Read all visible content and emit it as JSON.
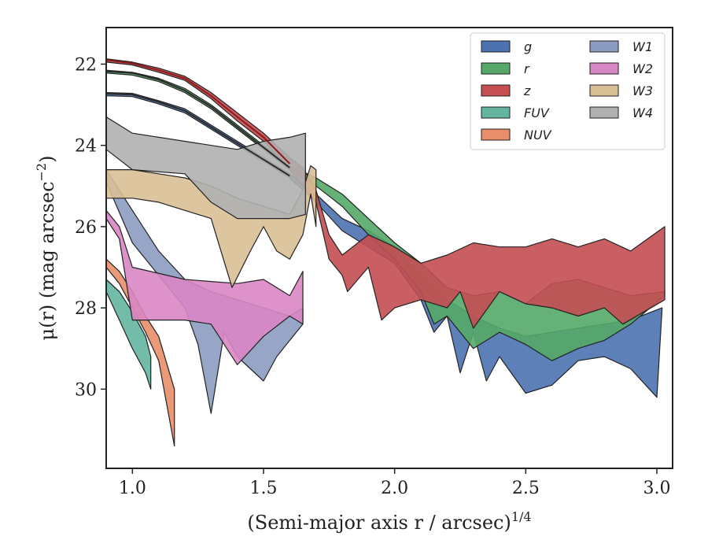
{
  "chart_data": {
    "type": "area",
    "xlabel": "(Semi-major axis r / arcsec)",
    "xlabel_sup": "1/4",
    "ylabel": "μ(r) (mag arcsec",
    "ylabel_sup": "−2",
    "ylabel_tail": ")",
    "xlim": [
      0.9,
      3.06
    ],
    "ylim": [
      31.95,
      21.1
    ],
    "y_inverted": true,
    "x_ticks": [
      1.0,
      1.5,
      2.0,
      2.5,
      3.0
    ],
    "x_tick_labels": [
      "1.0",
      "1.5",
      "2.0",
      "2.5",
      "3.0"
    ],
    "y_ticks": [
      22,
      24,
      26,
      28,
      30
    ],
    "y_tick_labels": [
      "22",
      "24",
      "26",
      "28",
      "30"
    ],
    "grid": false,
    "legend_placement": "top-right",
    "legend_columns": 2,
    "series": [
      {
        "name": "g",
        "color": "#4c72b0",
        "upper": [
          [
            0.9,
            22.7
          ],
          [
            1.0,
            22.72
          ],
          [
            1.1,
            22.9
          ],
          [
            1.2,
            23.1
          ],
          [
            1.3,
            23.5
          ],
          [
            1.4,
            23.9
          ],
          [
            1.5,
            24.3
          ],
          [
            1.6,
            24.7
          ],
          [
            1.7,
            25.2
          ],
          [
            1.8,
            25.8
          ],
          [
            1.9,
            26.1
          ],
          [
            2.0,
            26.5
          ],
          [
            2.1,
            27.2
          ],
          [
            2.2,
            27.8
          ],
          [
            2.3,
            28.2
          ],
          [
            2.4,
            28.5
          ],
          [
            2.5,
            28.7
          ],
          [
            2.7,
            28.5
          ],
          [
            2.9,
            28.3
          ],
          [
            3.02,
            28.0
          ]
        ],
        "lower": [
          [
            0.9,
            22.78
          ],
          [
            1.0,
            22.8
          ],
          [
            1.1,
            22.98
          ],
          [
            1.2,
            23.2
          ],
          [
            1.3,
            23.6
          ],
          [
            1.4,
            24.0
          ],
          [
            1.5,
            24.4
          ],
          [
            1.6,
            24.8
          ],
          [
            1.7,
            25.4
          ],
          [
            1.8,
            26.1
          ],
          [
            1.9,
            26.5
          ],
          [
            2.0,
            26.9
          ],
          [
            2.1,
            27.8
          ],
          [
            2.15,
            28.6
          ],
          [
            2.2,
            28.2
          ],
          [
            2.25,
            29.6
          ],
          [
            2.3,
            28.6
          ],
          [
            2.35,
            29.8
          ],
          [
            2.4,
            29.2
          ],
          [
            2.5,
            30.1
          ],
          [
            2.6,
            29.9
          ],
          [
            2.7,
            29.3
          ],
          [
            2.8,
            29.2
          ],
          [
            2.9,
            29.5
          ],
          [
            3.0,
            30.2
          ]
        ]
      },
      {
        "name": "r",
        "color": "#55a868",
        "upper": [
          [
            0.9,
            22.15
          ],
          [
            1.0,
            22.2
          ],
          [
            1.1,
            22.35
          ],
          [
            1.2,
            22.6
          ],
          [
            1.3,
            23.0
          ],
          [
            1.4,
            23.5
          ],
          [
            1.5,
            24.0
          ],
          [
            1.6,
            24.5
          ],
          [
            1.7,
            24.8
          ],
          [
            1.8,
            25.2
          ],
          [
            1.9,
            25.8
          ],
          [
            2.0,
            26.4
          ],
          [
            2.1,
            26.9
          ],
          [
            2.2,
            27.5
          ],
          [
            2.3,
            27.7
          ],
          [
            2.4,
            27.6
          ],
          [
            2.5,
            27.9
          ],
          [
            2.6,
            27.4
          ],
          [
            2.7,
            27.3
          ],
          [
            2.8,
            27.5
          ],
          [
            2.9,
            27.7
          ],
          [
            3.03,
            27.6
          ]
        ],
        "lower": [
          [
            0.9,
            22.22
          ],
          [
            1.0,
            22.27
          ],
          [
            1.1,
            22.43
          ],
          [
            1.2,
            22.7
          ],
          [
            1.3,
            23.1
          ],
          [
            1.4,
            23.6
          ],
          [
            1.5,
            24.1
          ],
          [
            1.6,
            24.6
          ],
          [
            1.7,
            25.0
          ],
          [
            1.8,
            25.5
          ],
          [
            1.9,
            26.2
          ],
          [
            2.0,
            26.8
          ],
          [
            2.1,
            27.6
          ],
          [
            2.15,
            28.4
          ],
          [
            2.2,
            28.2
          ],
          [
            2.3,
            29.0
          ],
          [
            2.4,
            28.6
          ],
          [
            2.5,
            28.9
          ],
          [
            2.6,
            29.3
          ],
          [
            2.7,
            29.0
          ],
          [
            2.8,
            28.8
          ],
          [
            2.9,
            28.4
          ],
          [
            3.03,
            27.7
          ]
        ]
      },
      {
        "name": "z",
        "color": "#c44e52",
        "upper": [
          [
            0.9,
            21.87
          ],
          [
            1.0,
            21.95
          ],
          [
            1.1,
            22.1
          ],
          [
            1.2,
            22.3
          ],
          [
            1.3,
            22.7
          ],
          [
            1.4,
            23.2
          ],
          [
            1.5,
            23.7
          ],
          [
            1.6,
            24.3
          ],
          [
            1.65,
            24.55
          ],
          [
            1.7,
            25.1
          ],
          [
            1.75,
            26.2
          ],
          [
            1.8,
            26.7
          ],
          [
            1.9,
            26.2
          ],
          [
            2.0,
            26.5
          ],
          [
            2.1,
            26.9
          ],
          [
            2.2,
            26.7
          ],
          [
            2.3,
            26.4
          ],
          [
            2.4,
            26.5
          ],
          [
            2.5,
            26.5
          ],
          [
            2.6,
            26.3
          ],
          [
            2.7,
            26.5
          ],
          [
            2.8,
            26.3
          ],
          [
            2.9,
            26.6
          ],
          [
            3.03,
            26.0
          ]
        ],
        "lower": [
          [
            0.9,
            21.95
          ],
          [
            1.0,
            22.02
          ],
          [
            1.1,
            22.2
          ],
          [
            1.2,
            22.4
          ],
          [
            1.3,
            22.85
          ],
          [
            1.4,
            23.4
          ],
          [
            1.5,
            23.9
          ],
          [
            1.6,
            24.6
          ],
          [
            1.7,
            25.4
          ],
          [
            1.75,
            26.8
          ],
          [
            1.8,
            27.2
          ],
          [
            1.82,
            27.6
          ],
          [
            1.9,
            27.0
          ],
          [
            1.95,
            28.3
          ],
          [
            2.0,
            28.0
          ],
          [
            2.1,
            27.8
          ],
          [
            2.2,
            28.0
          ],
          [
            2.25,
            27.6
          ],
          [
            2.3,
            28.5
          ],
          [
            2.4,
            27.6
          ],
          [
            2.5,
            27.9
          ],
          [
            2.6,
            28.0
          ],
          [
            2.7,
            28.2
          ],
          [
            2.8,
            28.0
          ],
          [
            2.87,
            28.4
          ],
          [
            3.03,
            27.8
          ]
        ]
      },
      {
        "name": "FUV",
        "color": "#64b5a0",
        "upper": [
          [
            0.9,
            27.3
          ],
          [
            0.95,
            27.6
          ],
          [
            1.0,
            28.1
          ],
          [
            1.05,
            28.7
          ],
          [
            1.07,
            29.2
          ]
        ],
        "lower": [
          [
            0.9,
            27.6
          ],
          [
            0.95,
            28.3
          ],
          [
            1.0,
            29.0
          ],
          [
            1.05,
            29.6
          ],
          [
            1.07,
            30.0
          ]
        ]
      },
      {
        "name": "NUV",
        "color": "#e88e6a",
        "upper": [
          [
            0.9,
            26.8
          ],
          [
            0.95,
            27.1
          ],
          [
            1.0,
            27.6
          ],
          [
            1.05,
            28.2
          ],
          [
            1.1,
            28.7
          ],
          [
            1.16,
            30.0
          ]
        ],
        "lower": [
          [
            0.9,
            27.0
          ],
          [
            0.95,
            27.4
          ],
          [
            1.0,
            28.0
          ],
          [
            1.05,
            28.6
          ],
          [
            1.1,
            29.3
          ],
          [
            1.16,
            31.4
          ]
        ]
      },
      {
        "name": "W1",
        "color": "#8c9cc0",
        "upper": [
          [
            0.9,
            24.6
          ],
          [
            1.0,
            25.6
          ],
          [
            1.1,
            26.6
          ],
          [
            1.2,
            27.3
          ],
          [
            1.3,
            27.6
          ],
          [
            1.4,
            27.8
          ],
          [
            1.5,
            28.0
          ],
          [
            1.6,
            28.2
          ],
          [
            1.65,
            28.0
          ]
        ],
        "lower": [
          [
            0.9,
            24.9
          ],
          [
            1.0,
            26.4
          ],
          [
            1.1,
            27.2
          ],
          [
            1.2,
            28.0
          ],
          [
            1.25,
            28.9
          ],
          [
            1.3,
            30.6
          ],
          [
            1.35,
            28.6
          ],
          [
            1.4,
            29.2
          ],
          [
            1.45,
            29.5
          ],
          [
            1.5,
            29.8
          ],
          [
            1.55,
            29.2
          ],
          [
            1.6,
            28.8
          ],
          [
            1.65,
            28.4
          ]
        ]
      },
      {
        "name": "W2",
        "color": "#d986c4",
        "upper": [
          [
            0.9,
            25.6
          ],
          [
            0.95,
            26.0
          ],
          [
            1.0,
            27.0
          ],
          [
            1.2,
            27.3
          ],
          [
            1.4,
            27.4
          ],
          [
            1.5,
            27.3
          ],
          [
            1.6,
            27.7
          ],
          [
            1.65,
            27.1
          ]
        ],
        "lower": [
          [
            0.9,
            25.8
          ],
          [
            0.95,
            26.3
          ],
          [
            1.0,
            28.3
          ],
          [
            1.2,
            28.3
          ],
          [
            1.3,
            28.4
          ],
          [
            1.4,
            29.4
          ],
          [
            1.5,
            28.7
          ],
          [
            1.6,
            28.2
          ],
          [
            1.65,
            28.4
          ]
        ]
      },
      {
        "name": "W3",
        "color": "#d9bf96",
        "upper": [
          [
            0.9,
            24.6
          ],
          [
            1.0,
            24.6
          ],
          [
            1.1,
            24.7
          ],
          [
            1.2,
            24.8
          ],
          [
            1.3,
            25.0
          ],
          [
            1.4,
            25.3
          ],
          [
            1.5,
            25.5
          ],
          [
            1.6,
            25.7
          ],
          [
            1.65,
            25.1
          ],
          [
            1.68,
            24.5
          ],
          [
            1.7,
            24.6
          ]
        ],
        "lower": [
          [
            0.9,
            25.3
          ],
          [
            1.0,
            25.3
          ],
          [
            1.1,
            25.4
          ],
          [
            1.2,
            25.6
          ],
          [
            1.3,
            25.8
          ],
          [
            1.38,
            27.5
          ],
          [
            1.45,
            26.6
          ],
          [
            1.5,
            26.0
          ],
          [
            1.55,
            26.6
          ],
          [
            1.6,
            26.8
          ],
          [
            1.65,
            26.2
          ],
          [
            1.68,
            25.2
          ],
          [
            1.7,
            26.0
          ]
        ]
      },
      {
        "name": "W4",
        "color": "#b0b0b0",
        "upper": [
          [
            0.9,
            23.3
          ],
          [
            1.0,
            23.7
          ],
          [
            1.2,
            23.9
          ],
          [
            1.4,
            24.1
          ],
          [
            1.5,
            23.9
          ],
          [
            1.6,
            23.8
          ],
          [
            1.66,
            23.7
          ]
        ],
        "lower": [
          [
            0.9,
            24.1
          ],
          [
            1.0,
            24.6
          ],
          [
            1.2,
            24.7
          ],
          [
            1.3,
            25.4
          ],
          [
            1.4,
            25.8
          ],
          [
            1.5,
            25.8
          ],
          [
            1.6,
            25.8
          ],
          [
            1.66,
            25.7
          ]
        ]
      }
    ],
    "profile_lines": [
      {
        "series": "g",
        "color": "#2a2a2a",
        "points": [
          [
            0.9,
            22.73
          ],
          [
            1.0,
            22.75
          ],
          [
            1.1,
            22.93
          ],
          [
            1.2,
            23.15
          ],
          [
            1.3,
            23.55
          ],
          [
            1.4,
            23.95
          ],
          [
            1.5,
            24.35
          ],
          [
            1.6,
            24.75
          ]
        ]
      },
      {
        "series": "r",
        "color": "#2a2a2a",
        "points": [
          [
            0.9,
            22.18
          ],
          [
            1.0,
            22.22
          ],
          [
            1.1,
            22.38
          ],
          [
            1.2,
            22.65
          ],
          [
            1.3,
            23.05
          ],
          [
            1.4,
            23.55
          ],
          [
            1.5,
            24.05
          ],
          [
            1.6,
            24.55
          ]
        ]
      },
      {
        "series": "z",
        "color": "#8b1a1a",
        "points": [
          [
            0.9,
            21.9
          ],
          [
            1.0,
            21.98
          ],
          [
            1.1,
            22.15
          ],
          [
            1.2,
            22.35
          ],
          [
            1.3,
            22.78
          ],
          [
            1.4,
            23.3
          ],
          [
            1.5,
            23.8
          ],
          [
            1.6,
            24.45
          ]
        ]
      }
    ]
  }
}
